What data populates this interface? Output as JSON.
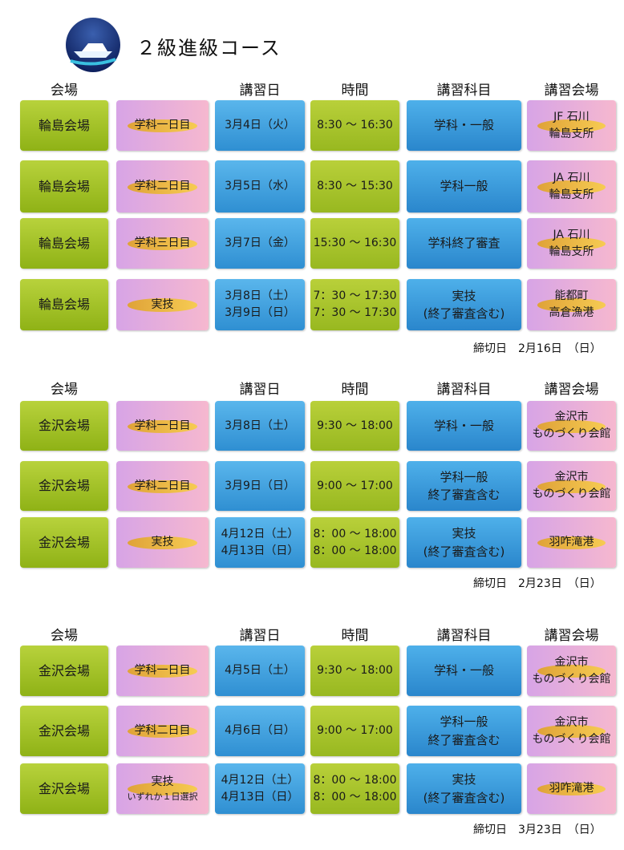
{
  "header": {
    "title": "２級進級コース"
  },
  "sections": [
    {
      "headers": [
        "会場",
        "講習日",
        "時間",
        "講習科目",
        "講習会場"
      ],
      "rows": [
        {
          "venue": "輪島会場",
          "day": [
            "学科一日目"
          ],
          "date": [
            "3月4日（火）"
          ],
          "time": [
            "8:30 ～ 16:30"
          ],
          "subject": [
            "学科・一般"
          ],
          "location": [
            "JF 石川",
            "輪島支所"
          ]
        },
        {
          "venue": "輪島会場",
          "day": [
            "学科二日目"
          ],
          "date": [
            "3月5日（水）"
          ],
          "time": [
            "8:30 ～ 15:30"
          ],
          "subject": [
            "学科一般"
          ],
          "location": [
            "JA 石川",
            "輪島支所"
          ]
        },
        {
          "venue": "輪島会場",
          "day": [
            "学科三日目"
          ],
          "date": [
            "3月7日（金）"
          ],
          "time": [
            "15:30 ～ 16:30"
          ],
          "subject": [
            "学科終了審査"
          ],
          "location": [
            "JA 石川",
            "輪島支所"
          ]
        },
        {
          "venue": "輪島会場",
          "day": [
            "実技"
          ],
          "date": [
            "3月8日（土）",
            "3月9日（日）"
          ],
          "time": [
            "7：30 ～ 17:30",
            "7：30 ～ 17:30"
          ],
          "subject": [
            "実技",
            "(終了審査含む)"
          ],
          "location": [
            "能都町",
            "高倉漁港"
          ]
        }
      ],
      "deadline": "締切日　2月16日　（日）"
    },
    {
      "headers": [
        "会場",
        "講習日",
        "時間",
        "講習科目",
        "講習会場"
      ],
      "rows": [
        {
          "venue": "金沢会場",
          "day": [
            "学科一日目"
          ],
          "date": [
            "3月8日（土）"
          ],
          "time": [
            "9:30 ～ 18:00"
          ],
          "subject": [
            "学科・一般"
          ],
          "location": [
            "金沢市",
            "ものづくり会館"
          ]
        },
        {
          "venue": "金沢会場",
          "day": [
            "学科二日目"
          ],
          "date": [
            "3月9日（日）"
          ],
          "time": [
            "9:00 ～ 17:00"
          ],
          "subject": [
            "学科一般",
            "終了審査含む"
          ],
          "location": [
            "金沢市",
            "ものづくり会館"
          ]
        },
        {
          "venue": "金沢会場",
          "day": [
            "実技"
          ],
          "date": [
            "4月12日（土）",
            "4月13日（日）"
          ],
          "time": [
            "8：00 ～ 18:00",
            "8：00 ～ 18:00"
          ],
          "subject": [
            "実技",
            "(終了審査含む)"
          ],
          "location": [
            "羽咋滝港"
          ]
        }
      ],
      "deadline": "締切日　2月23日　（日）"
    },
    {
      "headers": [
        "会場",
        "講習日",
        "時間",
        "講習科目",
        "講習会場"
      ],
      "rows": [
        {
          "venue": "金沢会場",
          "day": [
            "学科一日目"
          ],
          "date": [
            "4月5日（土）"
          ],
          "time": [
            "9:30 ～ 18:00"
          ],
          "subject": [
            "学科・一般"
          ],
          "location": [
            "金沢市",
            "ものづくり会館"
          ]
        },
        {
          "venue": "金沢会場",
          "day": [
            "学科二日目"
          ],
          "date": [
            "4月6日（日）"
          ],
          "time": [
            "9:00 ～ 17:00"
          ],
          "subject": [
            "学科一般",
            "終了審査含む"
          ],
          "location": [
            "金沢市",
            "ものづくり会館"
          ]
        },
        {
          "venue": "金沢会場",
          "day": [
            "実技",
            "いずれか１日選択"
          ],
          "date": [
            "4月12日（土）",
            "4月13日（日）"
          ],
          "time": [
            "8：00 ～ 18:00",
            "8：00 ～ 18:00"
          ],
          "subject": [
            "実技",
            "(終了審査含む)"
          ],
          "location": [
            "羽咋滝港"
          ]
        }
      ],
      "deadline": "締切日　3月23日　（日）"
    }
  ]
}
